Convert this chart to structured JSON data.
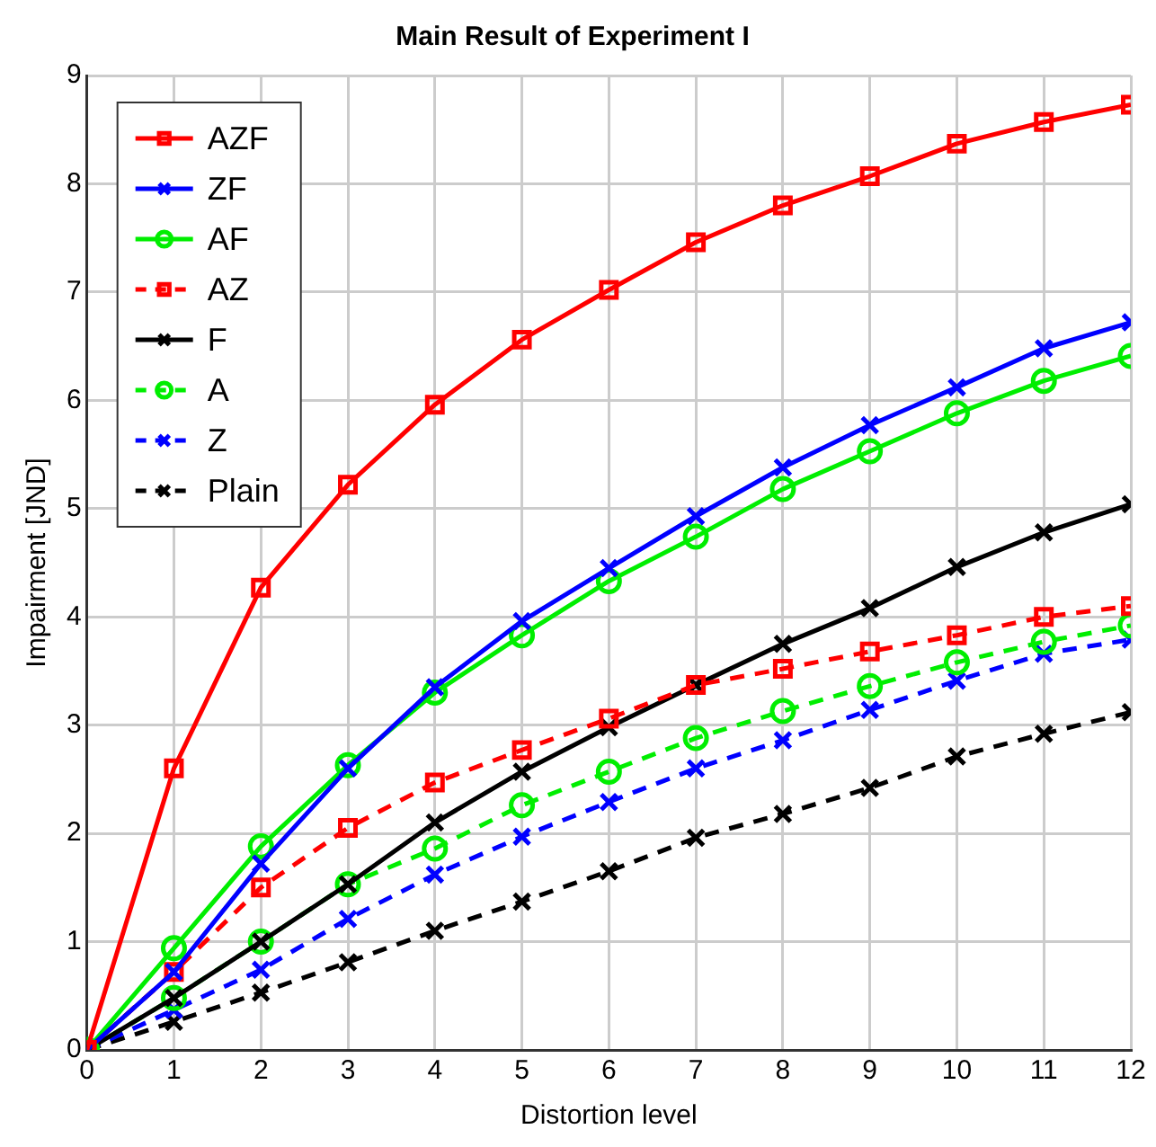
{
  "chart_data": {
    "type": "line",
    "title": "Main Result of Experiment I",
    "xlabel": "Distortion level",
    "ylabel": "Impairment [JND]",
    "x": [
      0,
      1,
      2,
      3,
      4,
      5,
      6,
      7,
      8,
      9,
      10,
      11,
      12
    ],
    "xlim": [
      0,
      12
    ],
    "xticks": [
      0,
      1,
      2,
      3,
      4,
      5,
      6,
      7,
      8,
      9,
      10,
      11,
      12
    ],
    "ylim": [
      0,
      9
    ],
    "yticks": [
      0,
      1,
      2,
      3,
      4,
      5,
      6,
      7,
      8,
      9
    ],
    "grid": true,
    "legend": "top left",
    "series": [
      {
        "name": "AZF",
        "color": "#ff0000",
        "marker": "square",
        "line_style": "solid",
        "values": [
          0,
          2.6,
          4.27,
          5.22,
          5.96,
          6.56,
          7.02,
          7.46,
          7.8,
          8.07,
          8.37,
          8.57,
          8.73
        ]
      },
      {
        "name": "ZF",
        "color": "#0000ff",
        "marker": "cross",
        "line_style": "solid",
        "values": [
          0,
          0.72,
          1.72,
          2.6,
          3.35,
          3.96,
          4.45,
          4.93,
          5.38,
          5.77,
          6.12,
          6.48,
          6.72
        ]
      },
      {
        "name": "AF",
        "color": "#00ee00",
        "marker": "circle",
        "line_style": "solid",
        "values": [
          0,
          0.94,
          1.88,
          2.63,
          3.3,
          3.83,
          4.33,
          4.74,
          5.18,
          5.53,
          5.88,
          6.18,
          6.41
        ]
      },
      {
        "name": "AZ",
        "color": "#ff0000",
        "marker": "square",
        "line_style": "dashed",
        "values": [
          0,
          0.72,
          1.5,
          2.05,
          2.47,
          2.77,
          3.06,
          3.37,
          3.52,
          3.68,
          3.83,
          4.0,
          4.1
        ]
      },
      {
        "name": "F",
        "color": "#000000",
        "marker": "cross",
        "line_style": "solid",
        "values": [
          0,
          0.48,
          1.0,
          1.53,
          2.1,
          2.57,
          2.98,
          3.37,
          3.75,
          4.08,
          4.46,
          4.78,
          5.04
        ]
      },
      {
        "name": "A",
        "color": "#00ee00",
        "marker": "circle",
        "line_style": "dashed",
        "values": [
          0,
          0.48,
          1.0,
          1.53,
          1.86,
          2.26,
          2.57,
          2.88,
          3.13,
          3.36,
          3.58,
          3.77,
          3.92
        ]
      },
      {
        "name": "Z",
        "color": "#0000ff",
        "marker": "cross",
        "line_style": "dashed",
        "values": [
          0,
          0.37,
          0.74,
          1.21,
          1.62,
          1.97,
          2.29,
          2.6,
          2.86,
          3.14,
          3.41,
          3.66,
          3.79
        ]
      },
      {
        "name": "Plain",
        "color": "#000000",
        "marker": "cross",
        "line_style": "dashed",
        "values": [
          0,
          0.26,
          0.53,
          0.81,
          1.1,
          1.37,
          1.65,
          1.96,
          2.18,
          2.42,
          2.71,
          2.92,
          3.12
        ]
      }
    ]
  }
}
